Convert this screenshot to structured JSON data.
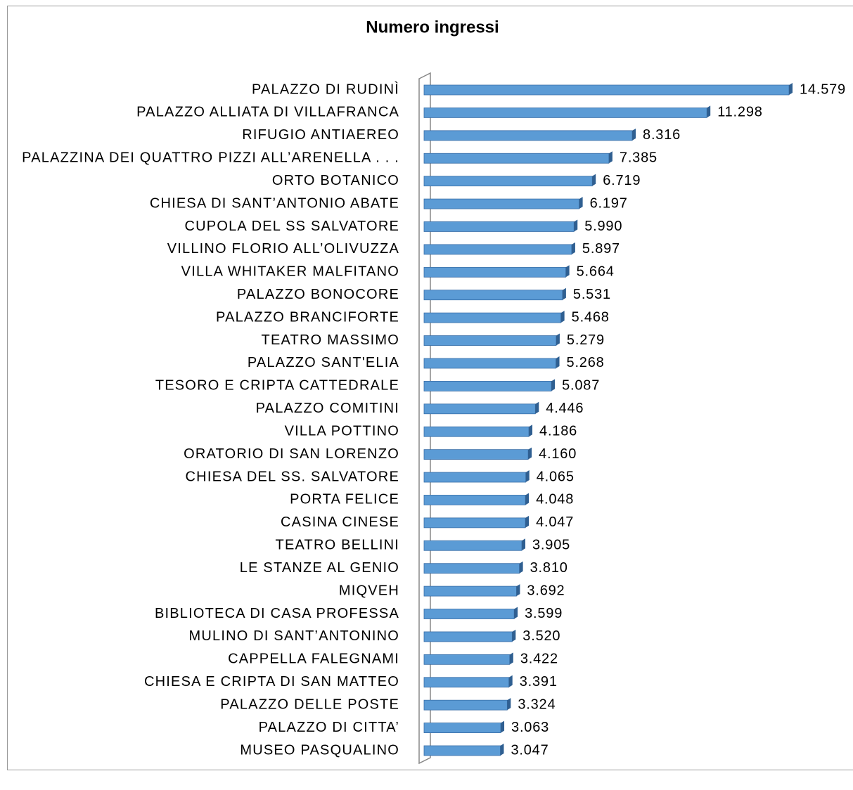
{
  "chart_data": {
    "type": "bar",
    "orientation": "horizontal",
    "title": "Numero ingressi",
    "color": "#5b9bd5",
    "categories": [
      "PALAZZO DI RUDINÌ",
      "PALAZZO ALLIATA DI VILLAFRANCA",
      "RIFUGIO ANTIAEREO",
      "PALAZZINA DEI QUATTRO PIZZI ALL’ARENELLA . . .",
      "ORTO BOTANICO",
      "CHIESA DI SANT’ANTONIO ABATE",
      "CUPOLA DEL SS SALVATORE",
      "VILLINO FLORIO ALL’OLIVUZZA",
      "VILLA WHITAKER MALFITANO",
      "PALAZZO BONOCORE",
      "PALAZZO BRANCIFORTE",
      "TEATRO MASSIMO",
      "PALAZZO SANT'ELIA",
      "TESORO E CRIPTA CATTEDRALE",
      "PALAZZO COMITINI",
      "VILLA POTTINO",
      "ORATORIO DI SAN LORENZO",
      "CHIESA DEL SS. SALVATORE",
      "PORTA FELICE",
      "CASINA CINESE",
      "TEATRO BELLINI",
      "LE STANZE AL GENIO",
      "MIQVEH",
      "BIBLIOTECA DI CASA PROFESSA",
      "MULINO DI SANT’ANTONINO",
      "CAPPELLA FALEGNAMI",
      "CHIESA E CRIPTA DI SAN MATTEO",
      "PALAZZO DELLE POSTE",
      "PALAZZO DI CITTA’",
      "MUSEO  PASQUALINO"
    ],
    "values": [
      14579,
      11298,
      8316,
      7385,
      6719,
      6197,
      5990,
      5897,
      5664,
      5531,
      5468,
      5279,
      5268,
      5087,
      4446,
      4186,
      4160,
      4065,
      4048,
      4047,
      3905,
      3810,
      3692,
      3599,
      3520,
      3422,
      3391,
      3324,
      3063,
      3047
    ],
    "value_labels": [
      "14.579",
      "11.298",
      "8.316",
      "7.385",
      "6.719",
      "6.197",
      "5.990",
      "5.897",
      "5.664",
      "5.531",
      "5.468",
      "5.279",
      "5.268",
      "5.087",
      "4.446",
      "4.186",
      "4.160",
      "4.065",
      "4.048",
      "4.047",
      "3.905",
      "3.810",
      "3.692",
      "3.599",
      "3.520",
      "3.422",
      "3.391",
      "3.324",
      "3.063",
      "3.047"
    ]
  }
}
